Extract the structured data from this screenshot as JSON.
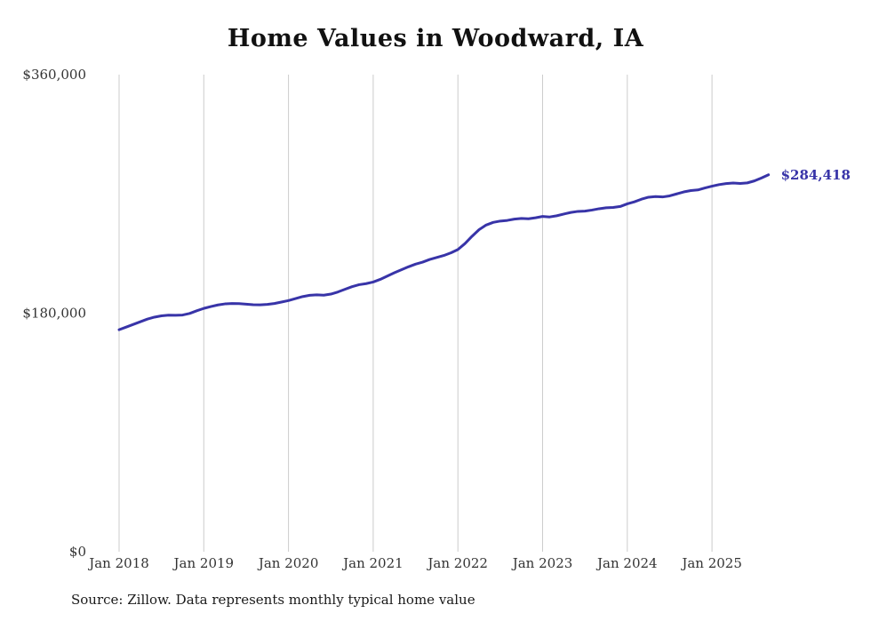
{
  "title": "Home Values in Woodward, IA",
  "source_note": "Source: Zillow. Data represents monthly typical home value",
  "end_label": "$284,418",
  "colors": {
    "line": "#3834a8",
    "grid": "#cccccc",
    "tick_text": "#333333",
    "title_text": "#111111"
  },
  "chart_data": {
    "type": "line",
    "title": "Home Values in Woodward, IA",
    "xlabel": "",
    "ylabel": "",
    "ylim": [
      0,
      360000
    ],
    "grid": "vertical",
    "legend": false,
    "y_ticks": [
      {
        "value": 0,
        "label": "$0"
      },
      {
        "value": 180000,
        "label": "$180,000"
      },
      {
        "value": 360000,
        "label": "$360,000"
      }
    ],
    "x_ticks": [
      {
        "index": 0,
        "label": "Jan 2018"
      },
      {
        "index": 12,
        "label": "Jan 2019"
      },
      {
        "index": 24,
        "label": "Jan 2020"
      },
      {
        "index": 36,
        "label": "Jan 2021"
      },
      {
        "index": 48,
        "label": "Jan 2022"
      },
      {
        "index": 60,
        "label": "Jan 2023"
      },
      {
        "index": 72,
        "label": "Jan 2024"
      },
      {
        "index": 84,
        "label": "Jan 2025"
      }
    ],
    "x": [
      "2018-01",
      "2018-02",
      "2018-03",
      "2018-04",
      "2018-05",
      "2018-06",
      "2018-07",
      "2018-08",
      "2018-09",
      "2018-10",
      "2018-11",
      "2018-12",
      "2019-01",
      "2019-02",
      "2019-03",
      "2019-04",
      "2019-05",
      "2019-06",
      "2019-07",
      "2019-08",
      "2019-09",
      "2019-10",
      "2019-11",
      "2019-12",
      "2020-01",
      "2020-02",
      "2020-03",
      "2020-04",
      "2020-05",
      "2020-06",
      "2020-07",
      "2020-08",
      "2020-09",
      "2020-10",
      "2020-11",
      "2020-12",
      "2021-01",
      "2021-02",
      "2021-03",
      "2021-04",
      "2021-05",
      "2021-06",
      "2021-07",
      "2021-08",
      "2021-09",
      "2021-10",
      "2021-11",
      "2021-12",
      "2022-01",
      "2022-02",
      "2022-03",
      "2022-04",
      "2022-05",
      "2022-06",
      "2022-07",
      "2022-08",
      "2022-09",
      "2022-10",
      "2022-11",
      "2022-12",
      "2023-01",
      "2023-02",
      "2023-03",
      "2023-04",
      "2023-05",
      "2023-06",
      "2023-07",
      "2023-08",
      "2023-09",
      "2023-10",
      "2023-11",
      "2023-12",
      "2024-01",
      "2024-02",
      "2024-03",
      "2024-04",
      "2024-05",
      "2024-06",
      "2024-07",
      "2024-08",
      "2024-09",
      "2024-10",
      "2024-11",
      "2024-12",
      "2025-01",
      "2025-02",
      "2025-03",
      "2025-04",
      "2025-05",
      "2025-06",
      "2025-07",
      "2025-08",
      "2025-09"
    ],
    "values": [
      167500,
      169500,
      171500,
      173500,
      175500,
      177000,
      178000,
      178500,
      178400,
      178600,
      179800,
      181800,
      183600,
      185000,
      186200,
      187000,
      187300,
      187200,
      186800,
      186400,
      186300,
      186600,
      187300,
      188400,
      189500,
      191000,
      192500,
      193500,
      193800,
      193600,
      194400,
      196000,
      198000,
      200000,
      201500,
      202300,
      203500,
      205500,
      208000,
      210500,
      212800,
      215000,
      217000,
      218500,
      220500,
      222000,
      223500,
      225500,
      228000,
      232500,
      238000,
      243000,
      246500,
      248500,
      249500,
      250000,
      251000,
      251500,
      251200,
      252000,
      253000,
      252600,
      253500,
      254800,
      256000,
      256800,
      257000,
      257800,
      258800,
      259500,
      259800,
      260500,
      262500,
      264000,
      266000,
      267500,
      268000,
      267700,
      268500,
      270000,
      271500,
      272500,
      273000,
      274500,
      275800,
      277000,
      277800,
      278200,
      277900,
      278300,
      279800,
      282000,
      284418
    ]
  }
}
